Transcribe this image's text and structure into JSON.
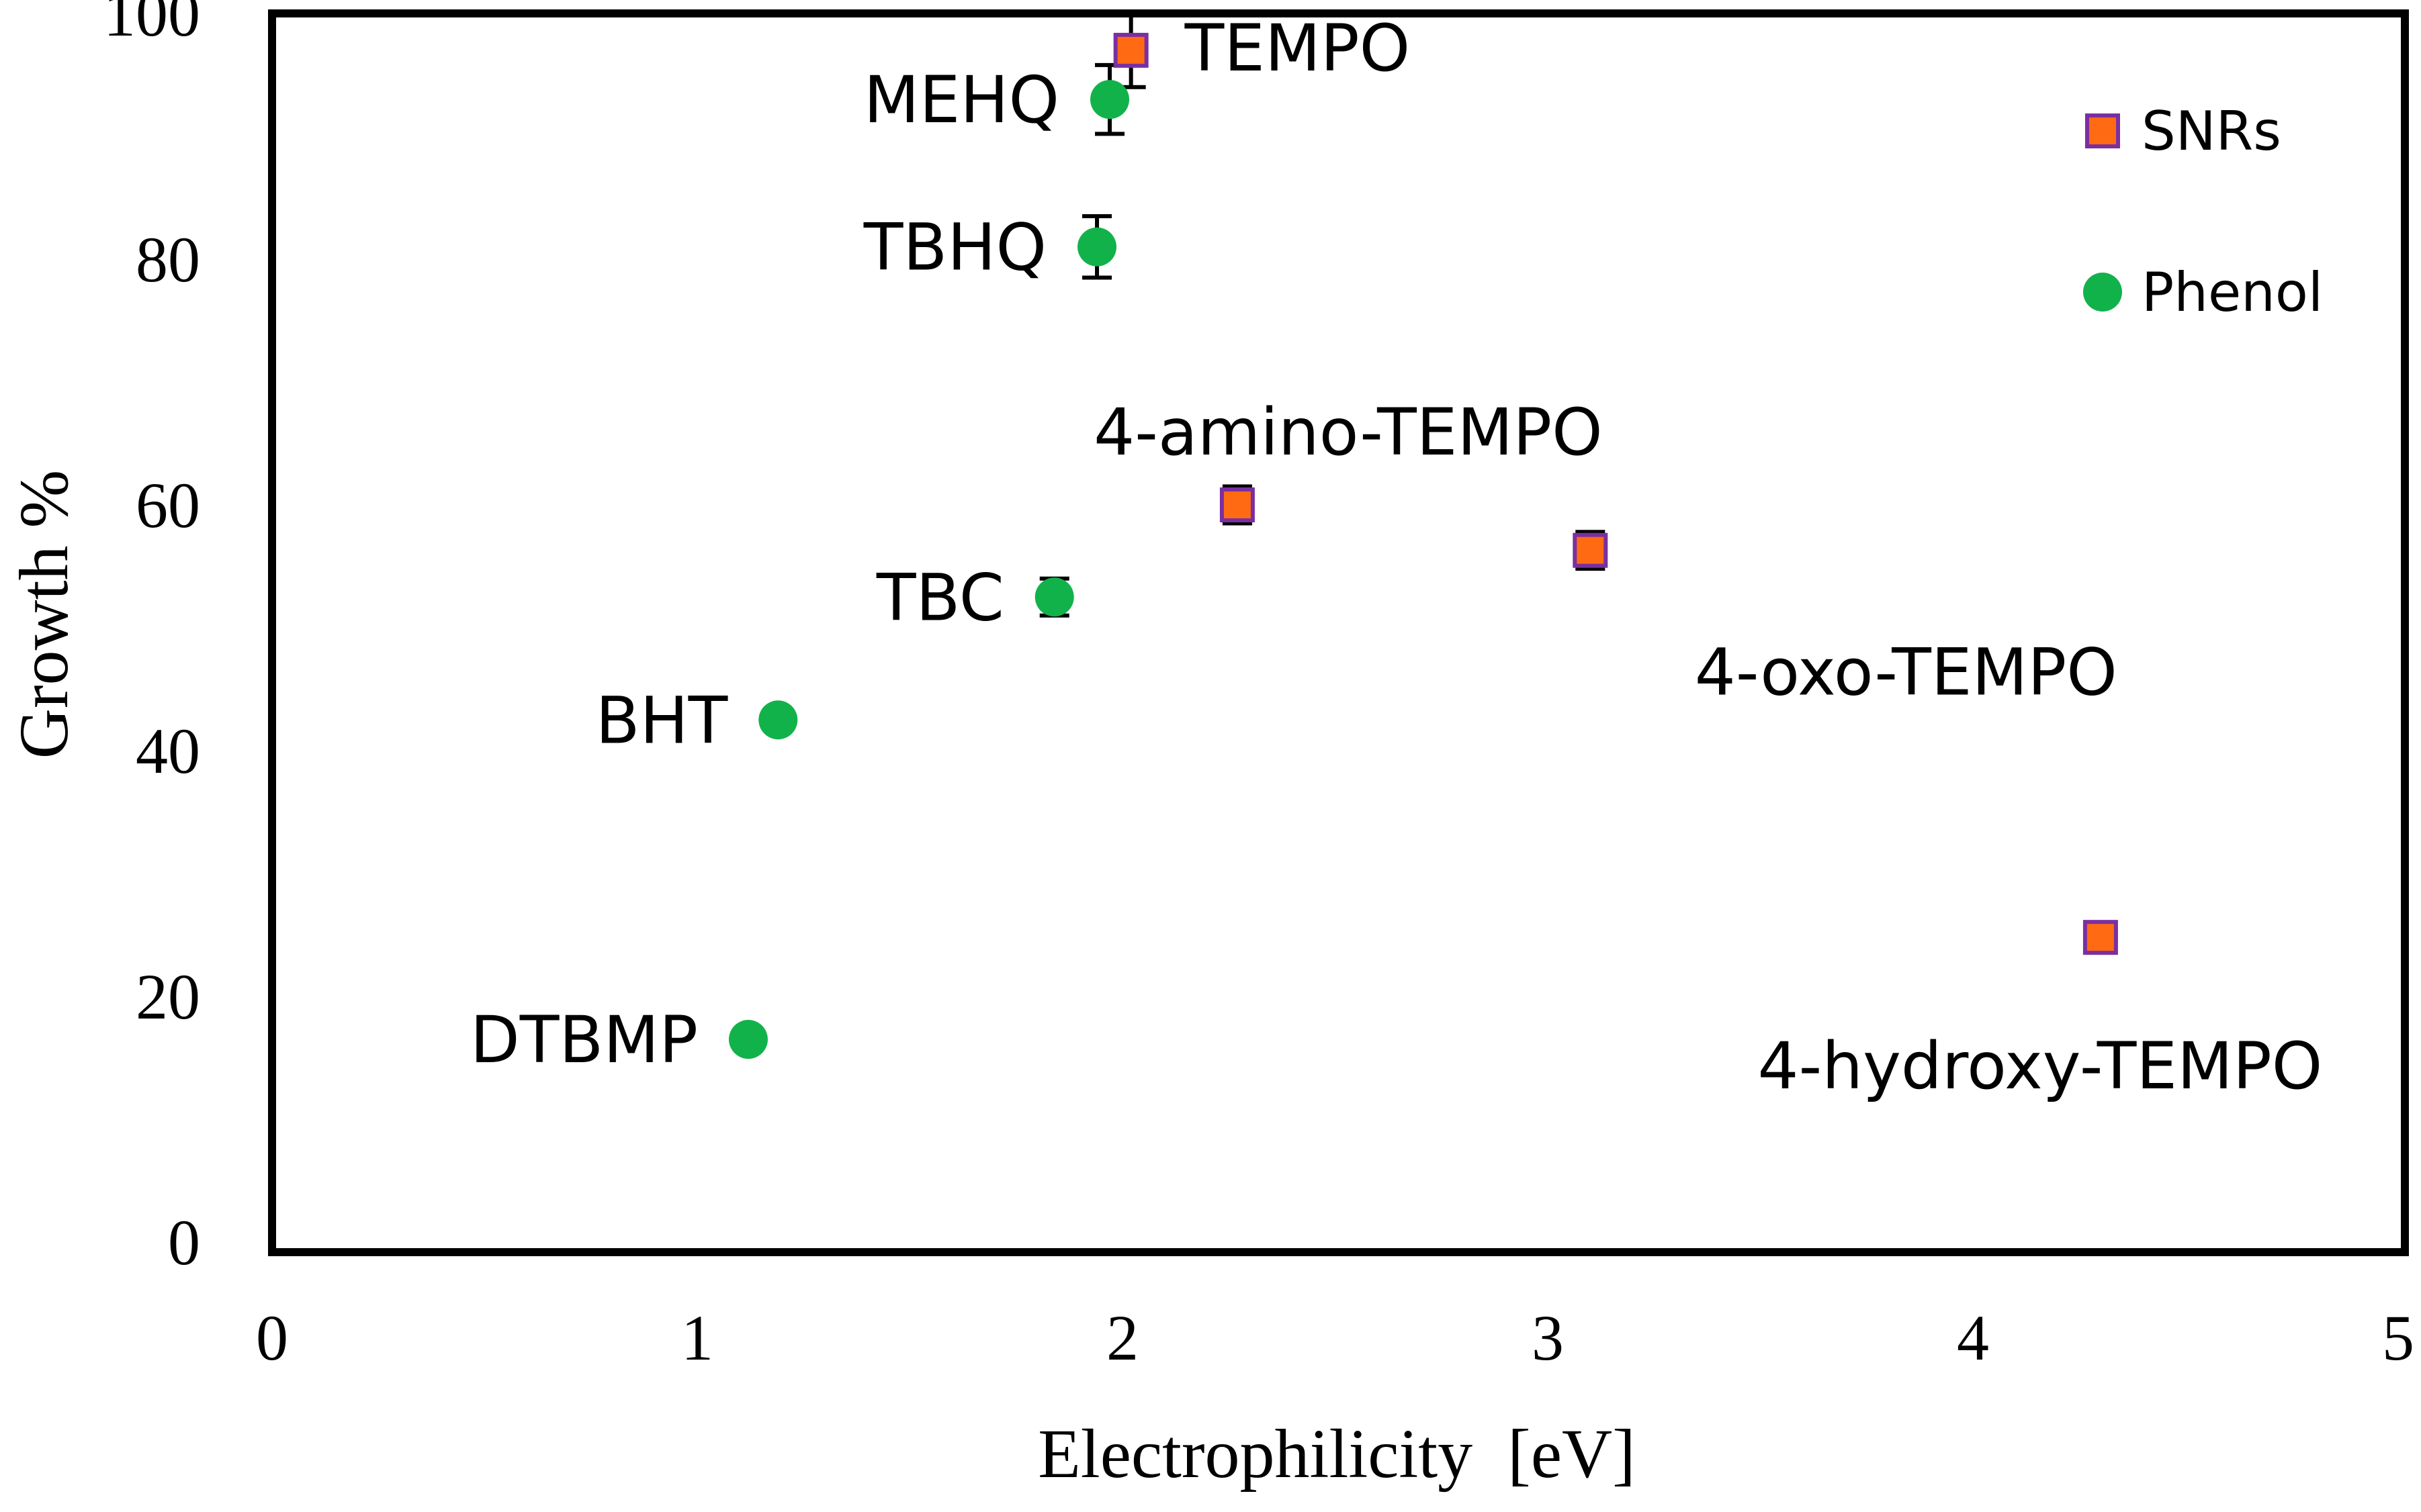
{
  "chart_data": {
    "type": "scatter",
    "title": "",
    "xlabel": "Electrophilicity  [eV]",
    "ylabel": "Growth %",
    "xlim": [
      0,
      5
    ],
    "ylim": [
      0,
      100
    ],
    "x_ticks": [
      0,
      1,
      2,
      3,
      4,
      5
    ],
    "y_ticks": [
      0,
      20,
      40,
      60,
      80,
      100
    ],
    "grid": false,
    "legend_position": "top-right",
    "series": [
      {
        "name": "SNRs",
        "marker": "square",
        "color": "#FF6A13",
        "edge_color": "#7A2FA0",
        "points": [
          {
            "label": "TEMPO",
            "x": 2.02,
            "y": 97.0,
            "err": 3.0
          },
          {
            "label": "4-amino-TEMPO",
            "x": 2.27,
            "y": 60.0,
            "err": 1.5
          },
          {
            "label": "4-oxo-TEMPO",
            "x": 3.1,
            "y": 56.3,
            "err": 1.5
          },
          {
            "label": "4-hydroxy-TEMPO",
            "x": 4.3,
            "y": 24.8,
            "err": 0
          }
        ]
      },
      {
        "name": "Phenol",
        "marker": "circle",
        "color": "#12B24B",
        "points": [
          {
            "label": "MEHQ",
            "x": 1.97,
            "y": 93.0,
            "err": 2.8
          },
          {
            "label": "TBHQ",
            "x": 1.94,
            "y": 81.0,
            "err": 2.5
          },
          {
            "label": "TBC",
            "x": 1.84,
            "y": 52.5,
            "err": 1.5
          },
          {
            "label": "BHT",
            "x": 1.19,
            "y": 42.5,
            "err": 0
          },
          {
            "label": "DTBMP",
            "x": 1.12,
            "y": 16.5,
            "err": 0
          }
        ]
      }
    ]
  }
}
